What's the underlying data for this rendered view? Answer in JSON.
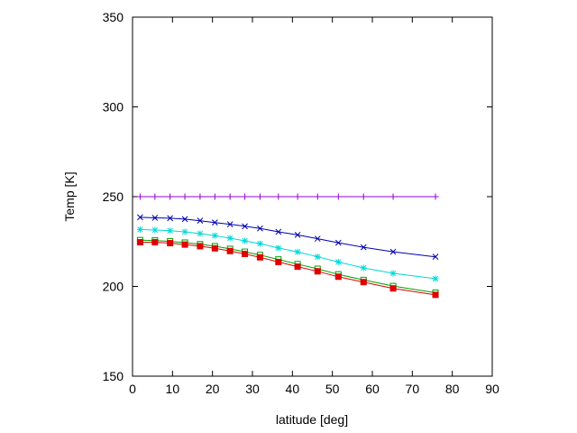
{
  "chart_data": {
    "type": "line",
    "title": "",
    "xlabel": "latitude [deg]",
    "ylabel": "Temp [K]",
    "xlim": [
      0,
      90
    ],
    "ylim": [
      150,
      350
    ],
    "xticks": [
      0,
      10,
      20,
      30,
      40,
      50,
      60,
      70,
      80,
      90
    ],
    "yticks": [
      150,
      200,
      250,
      300,
      350
    ],
    "grid": false,
    "legend": "none",
    "series": [
      {
        "marker": "plus",
        "color": "#9400d3",
        "x": [
          1.9,
          5.6,
          9.4,
          13.1,
          16.9,
          20.6,
          24.4,
          28.1,
          31.9,
          36.5,
          41.3,
          46.3,
          51.5,
          57.8,
          65.2,
          75.8
        ],
        "y": [
          250,
          250,
          250,
          250,
          250,
          250,
          250,
          250,
          250,
          250,
          250,
          250,
          250,
          250,
          250,
          250
        ]
      },
      {
        "marker": "x",
        "color": "#0000b0",
        "x": [
          1.9,
          5.6,
          9.4,
          13.1,
          16.9,
          20.6,
          24.4,
          28.1,
          31.9,
          36.5,
          41.3,
          46.3,
          51.5,
          57.8,
          65.2,
          75.8
        ],
        "y": [
          238.5,
          238.2,
          238.0,
          237.5,
          236.6,
          235.6,
          234.6,
          233.5,
          232.3,
          230.4,
          228.7,
          226.6,
          224.3,
          221.8,
          219.3,
          216.5
        ]
      },
      {
        "marker": "star",
        "color": "#00d8d8",
        "x": [
          1.9,
          5.6,
          9.4,
          13.1,
          16.9,
          20.6,
          24.4,
          28.1,
          31.9,
          36.5,
          41.3,
          46.3,
          51.5,
          57.8,
          65.2,
          75.8
        ],
        "y": [
          231.7,
          231.4,
          231.0,
          230.4,
          229.4,
          228.3,
          226.9,
          225.4,
          223.8,
          221.4,
          219.2,
          216.5,
          213.6,
          210.3,
          207.3,
          204.3
        ]
      },
      {
        "marker": "square",
        "color": "#00a000",
        "x": [
          1.9,
          5.6,
          9.4,
          13.1,
          16.9,
          20.6,
          24.4,
          28.1,
          31.9,
          36.5,
          41.3,
          46.3,
          51.5,
          57.8,
          65.2,
          75.8
        ],
        "y": [
          225.8,
          225.6,
          225.1,
          224.4,
          223.5,
          222.4,
          220.9,
          219.3,
          217.5,
          215.0,
          212.4,
          209.8,
          206.7,
          203.6,
          200.2,
          196.5
        ]
      },
      {
        "marker": "filled-square",
        "color": "#e00000",
        "x": [
          1.9,
          5.6,
          9.4,
          13.1,
          16.9,
          20.6,
          24.4,
          28.1,
          31.9,
          36.5,
          41.3,
          46.3,
          51.5,
          57.8,
          65.2,
          75.8
        ],
        "y": [
          224.6,
          224.6,
          224.1,
          223.3,
          222.4,
          221.2,
          219.7,
          218.1,
          216.2,
          213.6,
          211.0,
          208.4,
          205.4,
          202.4,
          198.9,
          195.3
        ]
      }
    ]
  }
}
